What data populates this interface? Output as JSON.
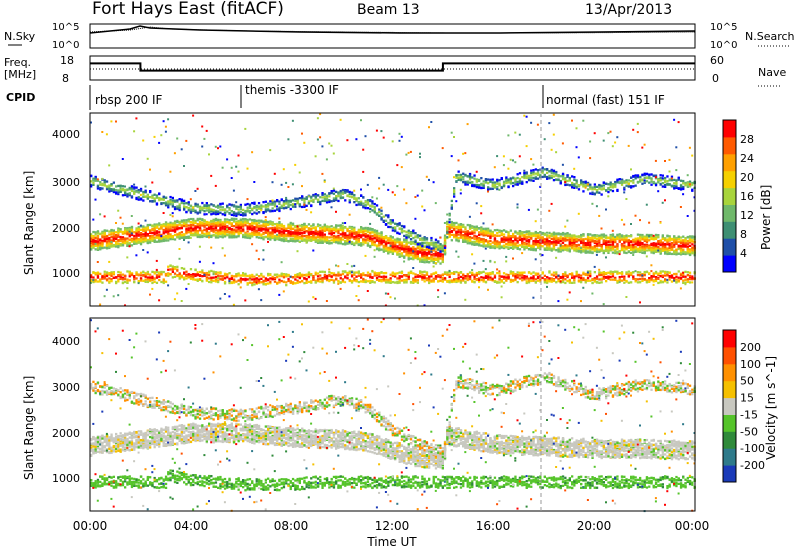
{
  "header": {
    "station": "Fort Hays East (fitACF)",
    "beam": "Beam 13",
    "date": "13/Apr/2013"
  },
  "noise_panel": {
    "left_label": "N.Sky",
    "right_label": "N.Search",
    "left_ticks": [
      "10^5",
      "10^0"
    ],
    "right_ticks": [
      "10^5",
      "10^0"
    ]
  },
  "freq_panel": {
    "left_label_1": "Freq.",
    "left_label_2": "[MHz]",
    "right_label": "Nave",
    "left_ticks": [
      "18",
      "8"
    ],
    "right_ticks": [
      "60",
      "0"
    ]
  },
  "cpid": {
    "label": "CPID",
    "segments": [
      {
        "name": "rbsp 200 IF",
        "start_hour": 0
      },
      {
        "name": "themis -3300 IF",
        "start_hour": 6
      },
      {
        "name": "normal (fast) 151 IF",
        "start_hour": 18
      }
    ]
  },
  "power_panel": {
    "ylabel": "Slant Range [km]",
    "yticks": [
      "4000",
      "3000",
      "2000",
      "1000"
    ],
    "colorbar_label": "Power [dB]",
    "colorbar_ticks": [
      "28",
      "24",
      "20",
      "16",
      "12",
      "8",
      "4"
    ],
    "colors": [
      "#0000ff",
      "#1f4fa8",
      "#3e8f73",
      "#6fb86a",
      "#a8d43c",
      "#f5d000",
      "#ffa000",
      "#ff5a00",
      "#ff0000"
    ]
  },
  "velocity_panel": {
    "ylabel": "Slant Range [km]",
    "yticks": [
      "4000",
      "3000",
      "2000",
      "1000"
    ],
    "colorbar_label": "Velocity [m s^-1]",
    "colorbar_ticks": [
      "200",
      "100",
      "50",
      "15",
      "-15",
      "-50",
      "-100",
      "-200"
    ],
    "colors": [
      "#1a3ab8",
      "#2e7a8a",
      "#2f8a3a",
      "#55c42a",
      "#c8c8c0",
      "#f5c000",
      "#ff9000",
      "#ff5000",
      "#ff0000"
    ]
  },
  "x_axis": {
    "ticks": [
      "00:00",
      "04:00",
      "08:00",
      "12:00",
      "16:00",
      "20:00",
      "00:00"
    ],
    "label": "Time UT"
  },
  "chart_data": {
    "type": "heatmap",
    "x_range_hours": [
      0,
      24
    ],
    "y_range_km": [
      180,
      4500
    ],
    "frequency_mhz": [
      {
        "start": 0,
        "end": 2,
        "value": 15
      },
      {
        "start": 2,
        "end": 14,
        "value": 11
      },
      {
        "start": 14,
        "end": 24,
        "value": 15
      }
    ],
    "power_scatter_bands": [
      {
        "name": "main",
        "points": [
          [
            0,
            1650
          ],
          [
            2,
            1800
          ],
          [
            4,
            1950
          ],
          [
            6,
            1950
          ],
          [
            8,
            1850
          ],
          [
            10,
            1800
          ],
          [
            11,
            1750
          ],
          [
            12,
            1550
          ],
          [
            13,
            1400
          ],
          [
            14,
            1350
          ],
          [
            14.1,
            1900
          ],
          [
            16,
            1700
          ],
          [
            18,
            1650
          ],
          [
            20,
            1600
          ],
          [
            22,
            1600
          ],
          [
            24,
            1550
          ]
        ]
      },
      {
        "name": "lower",
        "points": [
          [
            3,
            1000
          ],
          [
            4,
            900
          ],
          [
            5,
            850
          ],
          [
            6,
            800
          ],
          [
            7,
            800
          ],
          [
            8,
            800
          ],
          [
            9,
            850
          ]
        ]
      },
      {
        "name": "upper",
        "points": [
          [
            0,
            3000
          ],
          [
            2,
            2700
          ],
          [
            4,
            2400
          ],
          [
            6,
            2350
          ],
          [
            8,
            2500
          ],
          [
            10,
            2700
          ],
          [
            11,
            2500
          ],
          [
            12,
            2000
          ],
          [
            13,
            1700
          ],
          [
            14,
            1500
          ],
          [
            14.5,
            3100
          ],
          [
            16,
            2900
          ],
          [
            18,
            3200
          ],
          [
            20,
            2800
          ],
          [
            22,
            3050
          ],
          [
            24,
            2900
          ]
        ]
      }
    ],
    "power_db_range": [
      0,
      30
    ],
    "velocity_ms_range": [
      -250,
      250
    ]
  }
}
